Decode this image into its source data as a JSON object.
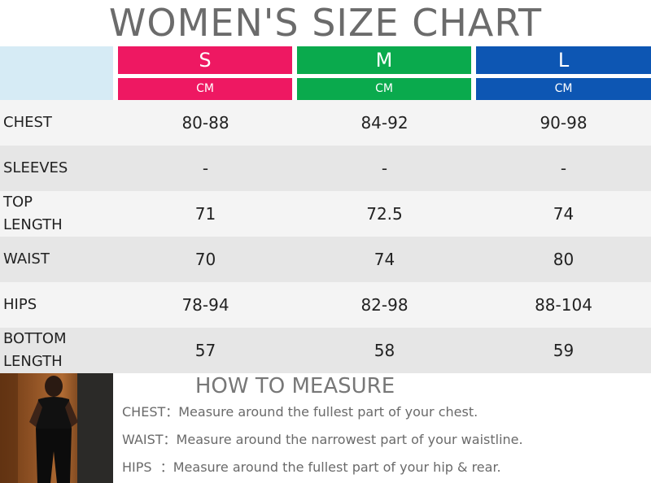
{
  "title": "WOMEN'S SIZE CHART",
  "sizes": [
    {
      "label": "S",
      "unit": "CM",
      "color": "#ee1862"
    },
    {
      "label": "M",
      "unit": "CM",
      "color": "#0aaa4d"
    },
    {
      "label": "L",
      "unit": "CM",
      "color": "#0d56b3"
    }
  ],
  "rows": [
    {
      "label": "CHEST",
      "values": [
        "80-88",
        "84-92",
        "90-98"
      ]
    },
    {
      "label": "SLEEVES",
      "values": [
        "-",
        "-",
        "-"
      ]
    },
    {
      "label": "TOP LENGTH",
      "values": [
        "71",
        "72.5",
        "74"
      ]
    },
    {
      "label": "WAIST",
      "values": [
        "70",
        "74",
        "80"
      ]
    },
    {
      "label": "HIPS",
      "values": [
        "78-94",
        "82-98",
        "88-104"
      ]
    },
    {
      "label": "BOTTOM LENGTH",
      "values": [
        "57",
        "58",
        "59"
      ]
    }
  ],
  "how_to_measure": {
    "heading": "HOW TO MEASURE",
    "items": [
      {
        "term": "CHEST：",
        "text": "Measure around the fullest part of your chest."
      },
      {
        "term": "WAIST：",
        "text": "Measure around the narrowest part of your waistline."
      },
      {
        "term": "HIPS  ：",
        "text": "Measure around the fullest part of your hip & rear."
      }
    ]
  },
  "colors": {
    "title": "#6b6b6b",
    "row_light": "#f4f4f4",
    "row_dark": "#e6e6e6",
    "corner": "#d6ebf5"
  }
}
